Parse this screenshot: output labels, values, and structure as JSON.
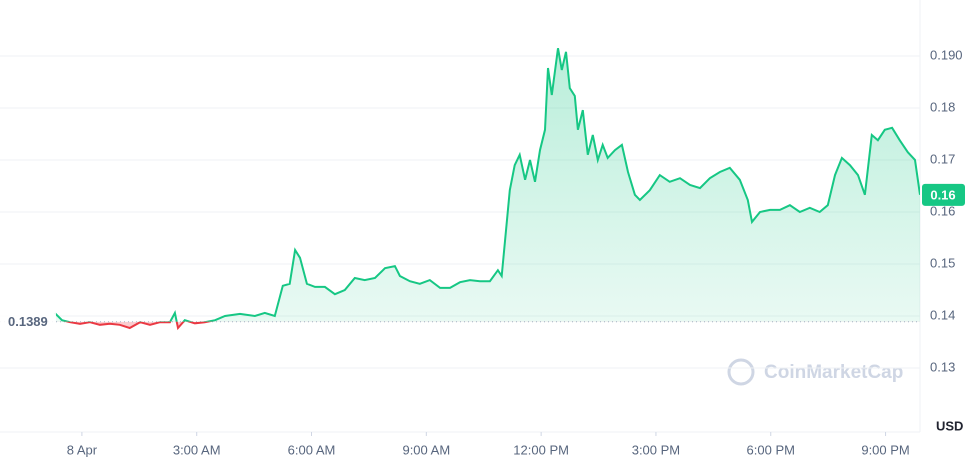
{
  "chart_data": {
    "type": "line",
    "x": [
      -0.71,
      -0.52,
      -0.31,
      -0.05,
      0.21,
      0.47,
      0.73,
      0.99,
      1.25,
      1.52,
      1.78,
      2.04,
      2.3,
      2.43,
      2.51,
      2.69,
      2.95,
      3.21,
      3.48,
      3.74,
      4.13,
      4.52,
      4.78,
      5.04,
      5.25,
      5.43,
      5.57,
      5.7,
      5.88,
      6.09,
      6.35,
      6.61,
      6.87,
      7.13,
      7.39,
      7.66,
      7.92,
      8.18,
      8.31,
      8.57,
      8.83,
      9.09,
      9.36,
      9.62,
      9.88,
      10.14,
      10.4,
      10.66,
      10.87,
      10.97,
      11.18,
      11.31,
      11.44,
      11.58,
      11.71,
      11.84,
      11.97,
      12.1,
      12.18,
      12.28,
      12.44,
      12.54,
      12.65,
      12.75,
      12.88,
      12.96,
      13.09,
      13.22,
      13.35,
      13.48,
      13.61,
      13.74,
      13.93,
      14.11,
      14.27,
      14.45,
      14.58,
      14.84,
      15.1,
      15.36,
      15.63,
      15.89,
      16.15,
      16.41,
      16.67,
      16.93,
      17.19,
      17.4,
      17.51,
      17.72,
      17.98,
      18.24,
      18.5,
      18.76,
      19.02,
      19.28,
      19.49,
      19.68,
      19.86,
      20.07,
      20.28,
      20.46,
      20.64,
      20.8,
      20.98,
      21.17,
      21.37,
      21.58,
      21.77,
      21.9
    ],
    "series": [
      {
        "color": "#16c784",
        "negative_color": "#ea3943",
        "values": [
          0.1406,
          0.1392,
          0.1388,
          0.1385,
          0.1388,
          0.1383,
          0.1385,
          0.1383,
          0.1377,
          0.1388,
          0.1383,
          0.1388,
          0.1388,
          0.1406,
          0.1377,
          0.1392,
          0.1386,
          0.1388,
          0.1392,
          0.14,
          0.1404,
          0.14,
          0.1406,
          0.14,
          0.1458,
          0.1462,
          0.1527,
          0.1512,
          0.1462,
          0.1456,
          0.1456,
          0.1442,
          0.145,
          0.1473,
          0.1469,
          0.1473,
          0.1492,
          0.1496,
          0.1477,
          0.1467,
          0.1462,
          0.1469,
          0.1454,
          0.1454,
          0.1465,
          0.1469,
          0.1467,
          0.1467,
          0.1488,
          0.1477,
          0.1642,
          0.169,
          0.171,
          0.1662,
          0.17,
          0.1658,
          0.1719,
          0.1758,
          0.1877,
          0.1825,
          0.1915,
          0.1873,
          0.1908,
          0.1838,
          0.1823,
          0.1758,
          0.1796,
          0.171,
          0.1748,
          0.17,
          0.1729,
          0.1704,
          0.1719,
          0.1729,
          0.1677,
          0.1633,
          0.1623,
          0.1642,
          0.1671,
          0.1658,
          0.1665,
          0.1652,
          0.1646,
          0.1665,
          0.1677,
          0.1685,
          0.1662,
          0.1623,
          0.1581,
          0.16,
          0.1604,
          0.1604,
          0.1613,
          0.16,
          0.1608,
          0.16,
          0.1613,
          0.1671,
          0.1704,
          0.169,
          0.1671,
          0.1633,
          0.1748,
          0.1738,
          0.1758,
          0.1762,
          0.1738,
          0.1715,
          0.17,
          0.1633
        ]
      }
    ],
    "xlim": [
      -2.14,
      21.9
    ],
    "xticks": [
      {
        "value": 0,
        "label": "8 Apr"
      },
      {
        "value": 3,
        "label": "3:00 AM"
      },
      {
        "value": 6,
        "label": "6:00 AM"
      },
      {
        "value": 9,
        "label": "9:00 AM"
      },
      {
        "value": 12,
        "label": "12:00 PM"
      },
      {
        "value": 15,
        "label": "3:00 PM"
      },
      {
        "value": 18,
        "label": "6:00 PM"
      },
      {
        "value": 21,
        "label": "9:00 PM"
      }
    ],
    "ylim": [
      0.12,
      0.2
    ],
    "yticks": [
      0.13,
      0.14,
      0.15,
      0.16,
      0.17,
      0.18,
      {
        "value": 0.19,
        "label": "0.190"
      }
    ],
    "baseline": {
      "value": 0.1389,
      "label": "0.1389"
    },
    "current": {
      "value": 0.1633,
      "label": "0.16"
    },
    "y_unit": "USD",
    "watermark": "CoinMarketCap",
    "grid": true
  }
}
